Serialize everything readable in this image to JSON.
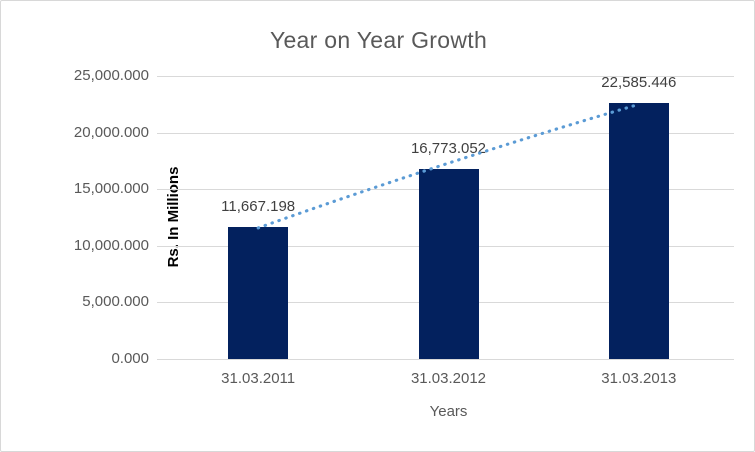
{
  "chart_data": {
    "type": "bar",
    "title": "Year on Year Growth",
    "xlabel": "Years",
    "ylabel": "Rs. In Millions",
    "categories": [
      "31.03.2011",
      "31.03.2012",
      "31.03.2013"
    ],
    "values": [
      11667.198,
      16773.052,
      22585.446
    ],
    "data_labels": [
      "11,667.198",
      "16,773.052",
      "22,585.446"
    ],
    "ylim": [
      0,
      25000
    ],
    "yticks": [
      0,
      5000,
      10000,
      15000,
      20000,
      25000
    ],
    "ytick_labels": [
      "0.000",
      "5,000.000",
      "10,000.000",
      "15,000.000",
      "20,000.000",
      "25,000.000"
    ],
    "grid": true,
    "legend": "none",
    "trendline": {
      "style": "dotted",
      "series": "values"
    },
    "colors": {
      "bar": "#03215e",
      "trendline": "#5b9bd5",
      "gridline": "#d9d9d9",
      "axis_text": "#595959",
      "title_text": "#595959",
      "data_label_text": "#404040",
      "border": "#d8d8d8"
    }
  }
}
